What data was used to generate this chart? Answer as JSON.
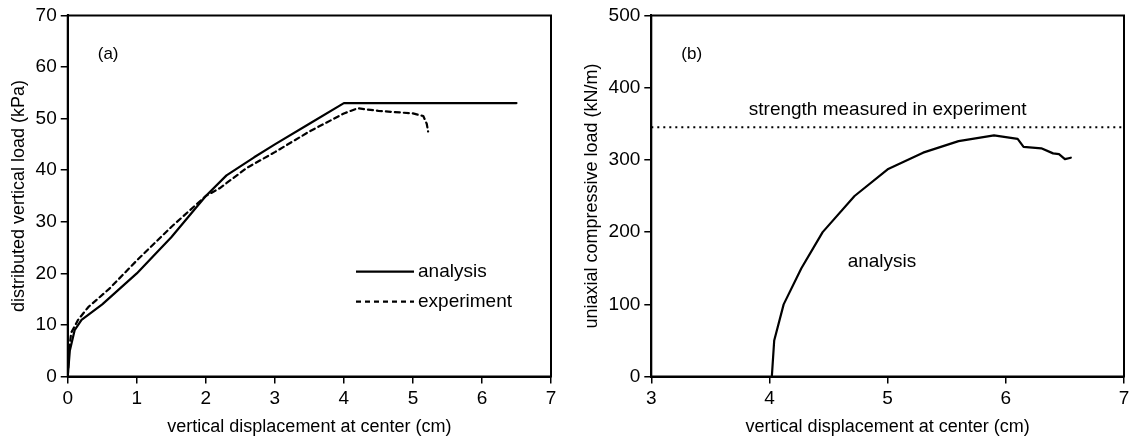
{
  "chart_data": [
    {
      "type": "line",
      "title": "(a)",
      "xlabel": "vertical displacement at center (cm)",
      "ylabel": "distributed vertical load (kPa)",
      "xlim": [
        0,
        7
      ],
      "xticks": [
        0,
        1,
        2,
        3,
        4,
        5,
        6,
        7
      ],
      "ylim": [
        0,
        70
      ],
      "yticks": [
        0,
        10,
        20,
        30,
        40,
        50,
        60,
        70
      ],
      "grid": false,
      "legend": "bottom right",
      "marker": "none",
      "series": [
        {
          "name": "analysis",
          "color": "#000000",
          "line_style": "solid",
          "x": [
            0,
            0.03,
            0.1,
            0.2,
            0.5,
            1,
            1.5,
            2,
            2.3,
            2.7,
            3,
            3.5,
            4,
            6.5
          ],
          "values": [
            0,
            5,
            9,
            11,
            14,
            20,
            27,
            35,
            39,
            42.5,
            45,
            49,
            53,
            53
          ]
        },
        {
          "name": "experiment",
          "color": "#000000",
          "line_style": "dashed",
          "x": [
            0,
            0.02,
            0.05,
            0.15,
            0.3,
            0.6,
            1,
            1.5,
            2,
            2.2,
            2.6,
            3,
            3.5,
            4,
            4.2,
            4.5,
            5,
            5.15,
            5.2,
            5.22
          ],
          "values": [
            0,
            5,
            8.5,
            11,
            13.5,
            17,
            22.5,
            29,
            35,
            36.5,
            40.5,
            43.5,
            47.5,
            51,
            52,
            51.5,
            51,
            50.5,
            49,
            47.5
          ]
        }
      ]
    },
    {
      "type": "line",
      "title": "(b)",
      "xlabel": "vertical displacement at center (cm)",
      "ylabel": "uniaxial compressive load (kN/m)",
      "xlim": [
        3,
        7
      ],
      "xticks": [
        3,
        4,
        5,
        6,
        7
      ],
      "ylim": [
        0,
        500
      ],
      "yticks": [
        0,
        100,
        200,
        300,
        400,
        500
      ],
      "grid": false,
      "legend": false,
      "marker": "none",
      "ref_lines": [
        {
          "axis": "y",
          "value": 345,
          "label": "strength measured in experiment",
          "color": "#000000",
          "line_style": "dotted"
        }
      ],
      "series": [
        {
          "name": "analysis",
          "color": "#000000",
          "line_style": "solid",
          "x": [
            4.02,
            4.04,
            4.12,
            4.27,
            4.45,
            4.72,
            5,
            5.3,
            5.6,
            5.9,
            6.1,
            6.15,
            6.3,
            6.4,
            6.45,
            6.5,
            6.55
          ],
          "values": [
            0,
            50,
            100,
            150,
            200,
            250,
            287,
            310,
            326,
            334,
            329,
            318,
            316,
            309,
            308,
            301,
            303
          ]
        }
      ]
    }
  ]
}
